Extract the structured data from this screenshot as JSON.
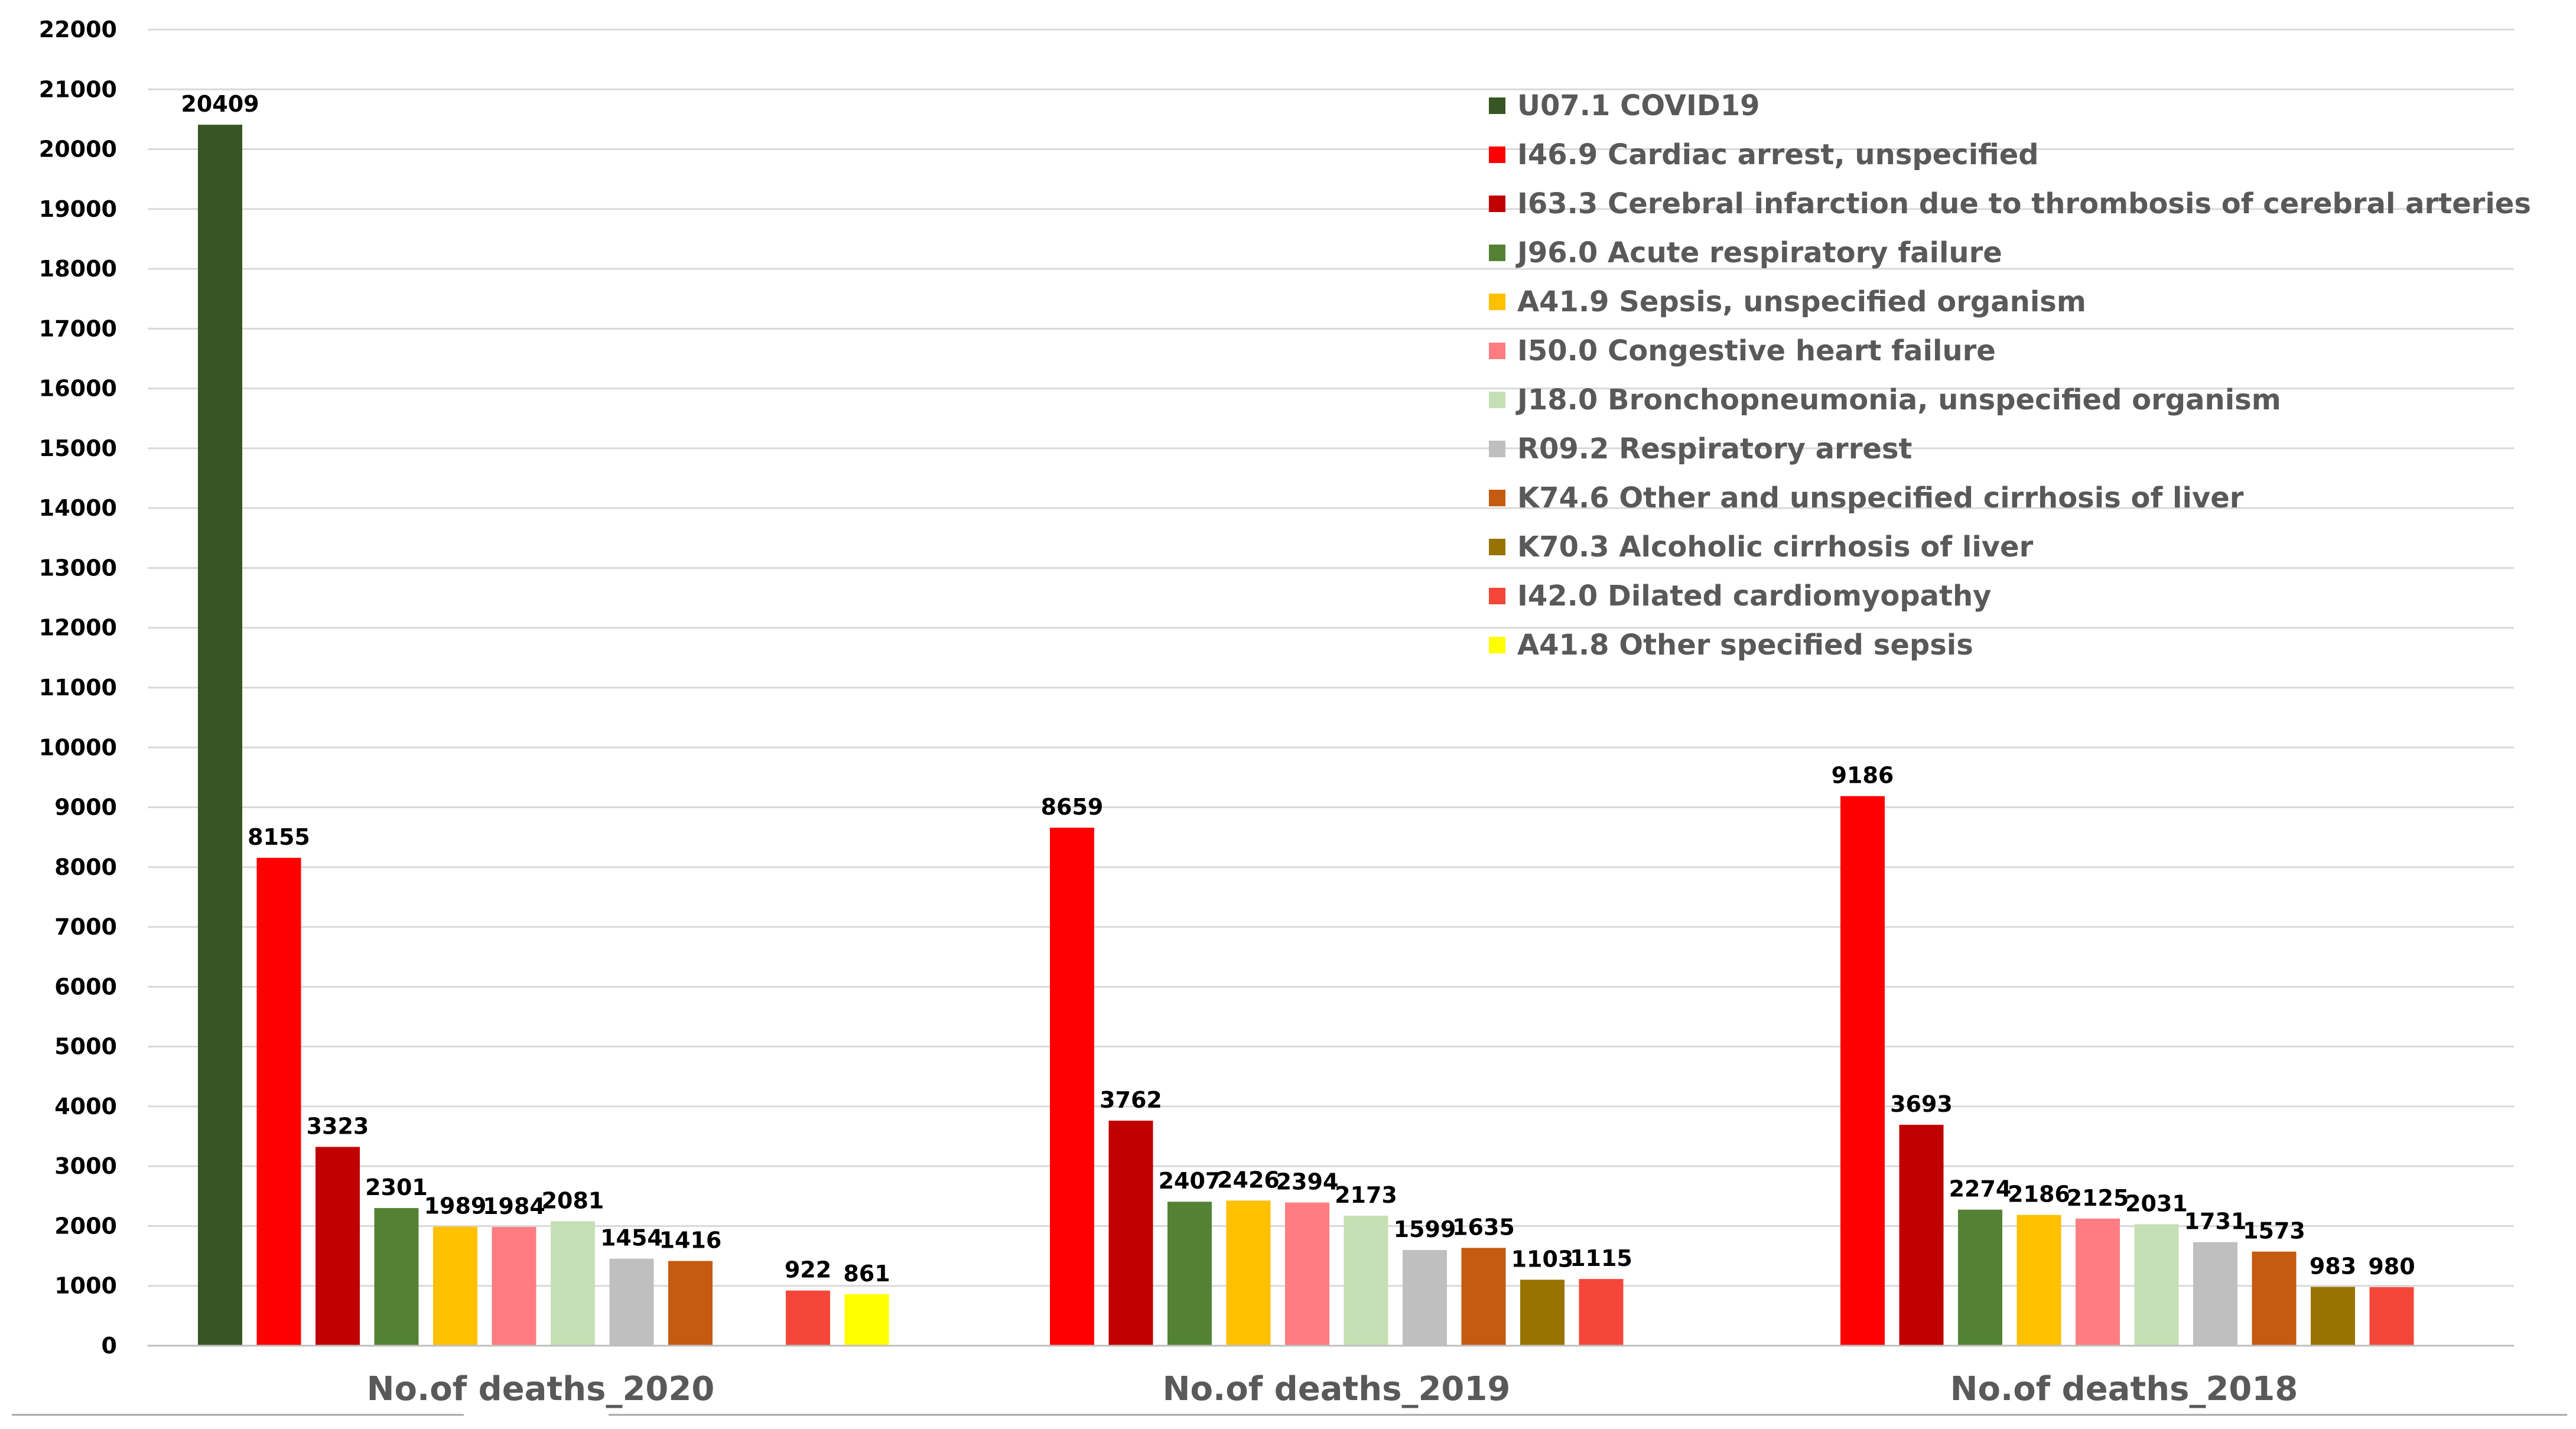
{
  "chart_data": {
    "type": "bar",
    "title": "",
    "xlabel": "",
    "ylabel": "",
    "ylim": [
      0,
      22000
    ],
    "yticks": [
      0,
      1000,
      2000,
      3000,
      4000,
      5000,
      6000,
      7000,
      8000,
      9000,
      10000,
      11000,
      12000,
      13000,
      14000,
      15000,
      16000,
      17000,
      18000,
      19000,
      20000,
      21000,
      22000
    ],
    "grid": true,
    "legend_position": "top-right",
    "categories": [
      "No.of deaths_2020",
      "No.of deaths_2019",
      "No.of deaths_2018"
    ],
    "series": [
      {
        "name": "U07.1 COVID19",
        "color": "#375623",
        "values": [
          20409,
          null,
          null
        ]
      },
      {
        "name": "I46.9 Cardiac arrest, unspecified",
        "color": "#FF0000",
        "values": [
          8155,
          8659,
          9186
        ]
      },
      {
        "name": "I63.3 Cerebral infarction due to thrombosis of cerebral arteries",
        "color": "#C00000",
        "values": [
          3323,
          3762,
          3693
        ]
      },
      {
        "name": "J96.0 Acute respiratory failure",
        "color": "#548235",
        "values": [
          2301,
          2407,
          2274
        ]
      },
      {
        "name": "A41.9 Sepsis, unspecified organism",
        "color": "#FFC000",
        "values": [
          1989,
          2426,
          2186
        ]
      },
      {
        "name": "I50.0 Congestive heart failure",
        "color": "#FF7C80",
        "values": [
          1984,
          2394,
          2125
        ]
      },
      {
        "name": "J18.0 Bronchopneumonia, unspecified organism",
        "color": "#C5E0B4",
        "values": [
          2081,
          2173,
          2031
        ]
      },
      {
        "name": "R09.2 Respiratory arrest",
        "color": "#BFBFBF",
        "values": [
          1454,
          1599,
          1731
        ]
      },
      {
        "name": "K74.6 Other and unspecified cirrhosis of liver",
        "color": "#C55A11",
        "values": [
          1416,
          1635,
          1573
        ]
      },
      {
        "name": "K70.3 Alcoholic cirrhosis of liver",
        "color": "#997300",
        "values": [
          null,
          1103,
          983
        ]
      },
      {
        "name": "I42.0 Dilated cardiomyopathy",
        "color": "#F4473A",
        "values": [
          922,
          1115,
          980
        ]
      },
      {
        "name": "A41.8 Other specified sepsis",
        "color": "#FFFF00",
        "values": [
          861,
          null,
          null
        ]
      }
    ]
  }
}
